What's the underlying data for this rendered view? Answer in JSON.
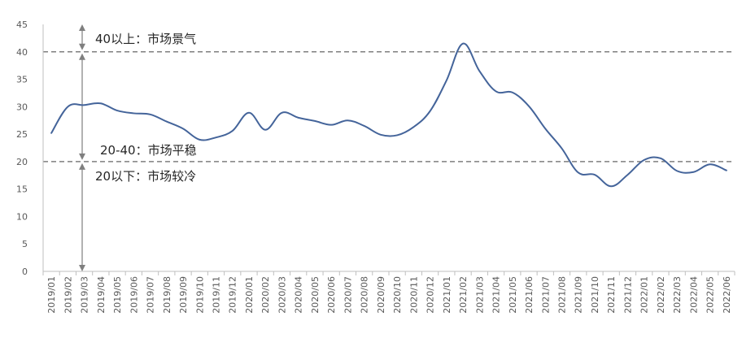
{
  "chart_data": {
    "type": "line",
    "title": "",
    "xlabel": "",
    "ylabel": "",
    "ylim": [
      0,
      45
    ],
    "yticks": [
      0,
      5,
      10,
      15,
      20,
      25,
      30,
      35,
      40,
      45
    ],
    "grid": false,
    "legend": "none",
    "line_color": "#44649a",
    "categories": [
      "2019/01",
      "2019/02",
      "2019/03",
      "2019/04",
      "2019/05",
      "2019/06",
      "2019/07",
      "2019/08",
      "2019/09",
      "2019/10",
      "2019/11",
      "2019/12",
      "2020/01",
      "2020/02",
      "2020/03",
      "2020/04",
      "2020/05",
      "2020/06",
      "2020/07",
      "2020/08",
      "2020/09",
      "2020/10",
      "2020/11",
      "2020/12",
      "2021/01",
      "2021/02",
      "2021/03",
      "2021/04",
      "2021/05",
      "2021/06",
      "2021/07",
      "2021/08",
      "2021/09",
      "2021/10",
      "2021/11",
      "2021/12",
      "2022/01",
      "2022/02",
      "2022/03",
      "2022/04",
      "2022/05",
      "2022/06"
    ],
    "series": [
      {
        "values": [
          25.2,
          30.0,
          30.3,
          30.6,
          29.3,
          28.8,
          28.6,
          27.3,
          26.0,
          24.0,
          24.4,
          25.6,
          28.9,
          25.8,
          28.9,
          28.0,
          27.4,
          26.7,
          27.5,
          26.5,
          24.9,
          24.8,
          26.3,
          29.2,
          34.8,
          41.5,
          36.5,
          32.8,
          32.6,
          30.1,
          26.0,
          22.4,
          18.0,
          17.6,
          15.5,
          17.6,
          20.3,
          20.6,
          18.3,
          18.1,
          19.5,
          18.4
        ]
      }
    ],
    "reference_lines": [
      {
        "y": 40,
        "style": "dashed",
        "color": "#7f7f7f"
      },
      {
        "y": 20,
        "style": "dashed",
        "color": "#7f7f7f"
      }
    ],
    "annotations": [
      {
        "text": "40以上：市场景气"
      },
      {
        "text": "20-40：市场平稳"
      },
      {
        "text": "20以下：市场较冷"
      }
    ]
  }
}
